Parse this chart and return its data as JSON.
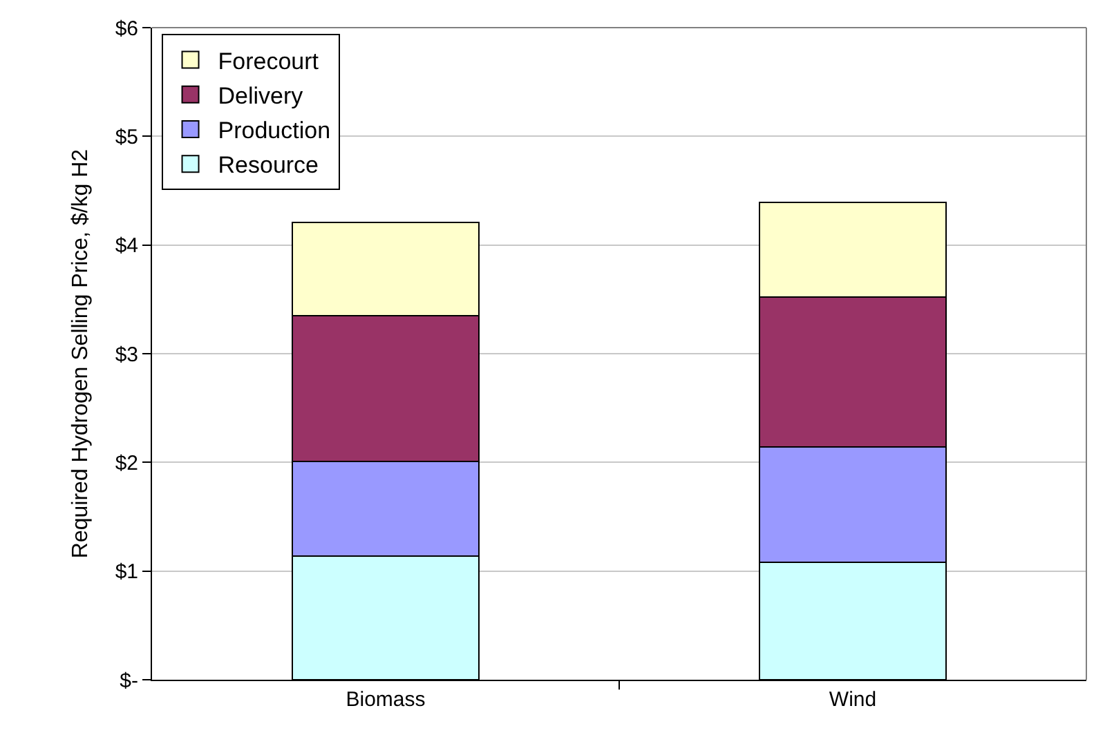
{
  "chart_data": {
    "type": "bar",
    "stacked": true,
    "ylabel": "Required Hydrogen Selling Price, $/kg H2",
    "categories": [
      "Biomass",
      "Wind"
    ],
    "series": [
      {
        "name": "Resource",
        "color": "#ccffff",
        "values": [
          1.14,
          1.08
        ]
      },
      {
        "name": "Production",
        "color": "#9999ff",
        "values": [
          0.87,
          1.06
        ]
      },
      {
        "name": "Delivery",
        "color": "#993366",
        "values": [
          1.34,
          1.38
        ]
      },
      {
        "name": "Forecourt",
        "color": "#ffffcc",
        "values": [
          0.86,
          0.87
        ]
      }
    ],
    "ylim": [
      0,
      6
    ],
    "yticks": [
      {
        "value": 0,
        "label": "$-"
      },
      {
        "value": 1,
        "label": "$1"
      },
      {
        "value": 2,
        "label": "$2"
      },
      {
        "value": 3,
        "label": "$3"
      },
      {
        "value": 4,
        "label": "$4"
      },
      {
        "value": 5,
        "label": "$5"
      },
      {
        "value": 6,
        "label": "$6"
      }
    ],
    "grid": "y",
    "legend": "top left"
  }
}
